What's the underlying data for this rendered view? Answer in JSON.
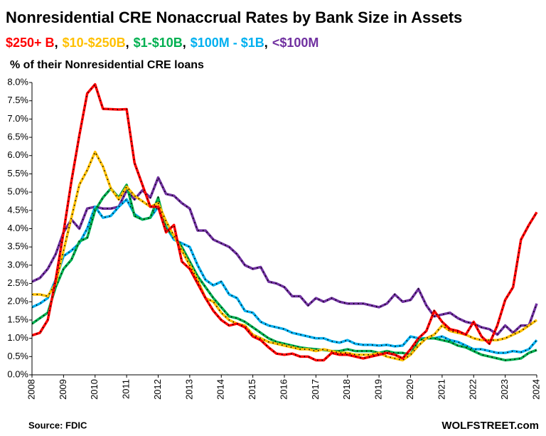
{
  "chart_data": {
    "type": "line",
    "title": "Nonresidential CRE Nonaccrual Rates by Bank Size in Assets",
    "legend_separator": ",",
    "y_label": "% of their Nonresidential CRE loans",
    "source": "Source: FDIC",
    "watermark": "WOLFSTREET.com",
    "grid": false,
    "x": [
      2008,
      2008.25,
      2008.5,
      2008.75,
      2009,
      2009.25,
      2009.5,
      2009.75,
      2010,
      2010.25,
      2010.5,
      2010.75,
      2011,
      2011.25,
      2011.5,
      2011.75,
      2012,
      2012.25,
      2012.5,
      2012.75,
      2013,
      2013.25,
      2013.5,
      2013.75,
      2014,
      2014.25,
      2014.5,
      2014.75,
      2015,
      2015.25,
      2015.5,
      2015.75,
      2016,
      2016.25,
      2016.5,
      2016.75,
      2017,
      2017.25,
      2017.5,
      2017.75,
      2018,
      2018.25,
      2018.5,
      2018.75,
      2019,
      2019.25,
      2019.5,
      2019.75,
      2020,
      2020.25,
      2020.5,
      2020.75,
      2021,
      2021.25,
      2021.5,
      2021.75,
      2022,
      2022.25,
      2022.5,
      2022.75,
      2023,
      2023.25,
      2023.5,
      2023.75,
      2024
    ],
    "xlim": [
      2008,
      2024
    ],
    "xticks": [
      2008,
      2009,
      2010,
      2011,
      2012,
      2013,
      2014,
      2015,
      2016,
      2017,
      2018,
      2019,
      2020,
      2021,
      2022,
      2023,
      2024
    ],
    "ylim": [
      0,
      8
    ],
    "yticks": [
      {
        "value": 0,
        "label": "0.0%"
      },
      {
        "value": 0.5,
        "label": "0.5%"
      },
      {
        "value": 1,
        "label": "1.0%"
      },
      {
        "value": 1.5,
        "label": "1.5%"
      },
      {
        "value": 2,
        "label": "2.0%"
      },
      {
        "value": 2.5,
        "label": "2.5%"
      },
      {
        "value": 3,
        "label": "3.0%"
      },
      {
        "value": 3.5,
        "label": "3.5%"
      },
      {
        "value": 4,
        "label": "4.0%"
      },
      {
        "value": 4.5,
        "label": "4.5%"
      },
      {
        "value": 5,
        "label": "5.0%"
      },
      {
        "value": 5.5,
        "label": "5.5%"
      },
      {
        "value": 6,
        "label": "6.0%"
      },
      {
        "value": 6.5,
        "label": "6.5%"
      },
      {
        "value": 7,
        "label": "7.0%"
      },
      {
        "value": 7.5,
        "label": "7.5%"
      },
      {
        "value": 8,
        "label": "8.0%"
      }
    ],
    "series": [
      {
        "name": "$250+ B",
        "color": "#ff0000",
        "values": [
          1.08,
          1.15,
          1.5,
          2.6,
          3.9,
          5.3,
          6.55,
          7.7,
          7.95,
          7.28,
          7.27,
          7.26,
          7.27,
          5.8,
          5.2,
          4.6,
          4.6,
          3.9,
          4.1,
          3.1,
          2.9,
          2.5,
          2.1,
          1.75,
          1.5,
          1.35,
          1.4,
          1.3,
          1.05,
          0.95,
          0.75,
          0.58,
          0.55,
          0.58,
          0.5,
          0.5,
          0.4,
          0.4,
          0.6,
          0.55,
          0.55,
          0.5,
          0.45,
          0.5,
          0.55,
          0.6,
          0.55,
          0.45,
          0.7,
          1.0,
          1.2,
          1.75,
          1.45,
          1.25,
          1.2,
          1.1,
          1.45,
          1.05,
          0.85,
          1.35,
          2.05,
          2.4,
          3.7,
          4.1,
          4.45
        ]
      },
      {
        "name": "$10-$250B",
        "color": "#ffc000",
        "values": [
          2.2,
          2.2,
          2.15,
          2.5,
          3.4,
          4.3,
          5.2,
          5.6,
          6.1,
          5.7,
          5.1,
          4.8,
          5.15,
          4.9,
          4.75,
          4.6,
          4.7,
          4.2,
          3.8,
          3.4,
          3.0,
          2.6,
          2.1,
          2.0,
          1.7,
          1.5,
          1.4,
          1.35,
          1.1,
          1.0,
          0.9,
          0.85,
          0.8,
          0.75,
          0.7,
          0.7,
          0.65,
          0.7,
          0.65,
          0.6,
          0.6,
          0.55,
          0.55,
          0.55,
          0.6,
          0.5,
          0.45,
          0.4,
          0.55,
          0.8,
          1.0,
          1.1,
          1.35,
          1.2,
          1.15,
          1.1,
          1.0,
          0.95,
          0.95,
          0.95,
          1.0,
          1.1,
          1.2,
          1.35,
          1.5
        ]
      },
      {
        "name": "$1-$10B",
        "color": "#00b050",
        "values": [
          1.4,
          1.55,
          1.7,
          2.4,
          2.9,
          3.15,
          3.65,
          3.75,
          4.5,
          4.85,
          5.1,
          4.85,
          5.2,
          4.35,
          4.25,
          4.3,
          4.85,
          4.0,
          3.8,
          3.5,
          3.1,
          2.7,
          2.4,
          2.1,
          1.85,
          1.6,
          1.55,
          1.45,
          1.3,
          1.15,
          1.0,
          0.9,
          0.85,
          0.8,
          0.75,
          0.72,
          0.7,
          0.68,
          0.65,
          0.65,
          0.7,
          0.65,
          0.65,
          0.65,
          0.6,
          0.65,
          0.6,
          0.6,
          0.55,
          0.95,
          1.0,
          1.0,
          0.95,
          0.9,
          0.8,
          0.75,
          0.65,
          0.55,
          0.5,
          0.45,
          0.4,
          0.42,
          0.45,
          0.6,
          0.68
        ]
      },
      {
        "name": "$100M - $1B",
        "color": "#00b0f0",
        "values": [
          1.85,
          1.95,
          2.1,
          2.6,
          3.25,
          3.4,
          3.6,
          4.0,
          4.6,
          4.3,
          4.35,
          4.6,
          4.8,
          4.4,
          4.25,
          4.3,
          4.6,
          4.05,
          3.7,
          3.6,
          3.5,
          3.0,
          2.6,
          2.45,
          2.55,
          2.2,
          2.1,
          1.75,
          1.7,
          1.45,
          1.35,
          1.3,
          1.25,
          1.15,
          1.1,
          1.05,
          1.0,
          1.0,
          0.92,
          0.88,
          0.95,
          0.85,
          0.82,
          0.82,
          0.8,
          0.82,
          0.78,
          0.8,
          1.05,
          1.0,
          1.0,
          1.0,
          1.05,
          0.95,
          0.9,
          0.8,
          0.7,
          0.7,
          0.65,
          0.6,
          0.6,
          0.65,
          0.62,
          0.7,
          0.95
        ]
      },
      {
        "name": "<$100M",
        "color": "#7030a0",
        "values": [
          2.55,
          2.65,
          2.9,
          3.3,
          3.9,
          4.25,
          4.0,
          4.55,
          4.6,
          4.55,
          4.55,
          4.6,
          5.05,
          4.8,
          5.05,
          4.85,
          5.4,
          4.95,
          4.9,
          4.7,
          4.55,
          3.95,
          3.95,
          3.7,
          3.6,
          3.5,
          3.3,
          3.0,
          2.9,
          2.95,
          2.55,
          2.5,
          2.4,
          2.15,
          2.15,
          1.9,
          2.1,
          2.0,
          2.1,
          2.0,
          1.95,
          1.95,
          1.95,
          1.9,
          1.85,
          1.95,
          2.2,
          2.0,
          2.05,
          2.35,
          1.9,
          1.6,
          1.65,
          1.7,
          1.55,
          1.45,
          1.4,
          1.3,
          1.25,
          1.1,
          1.35,
          1.15,
          1.35,
          1.35,
          1.95
        ]
      }
    ]
  }
}
